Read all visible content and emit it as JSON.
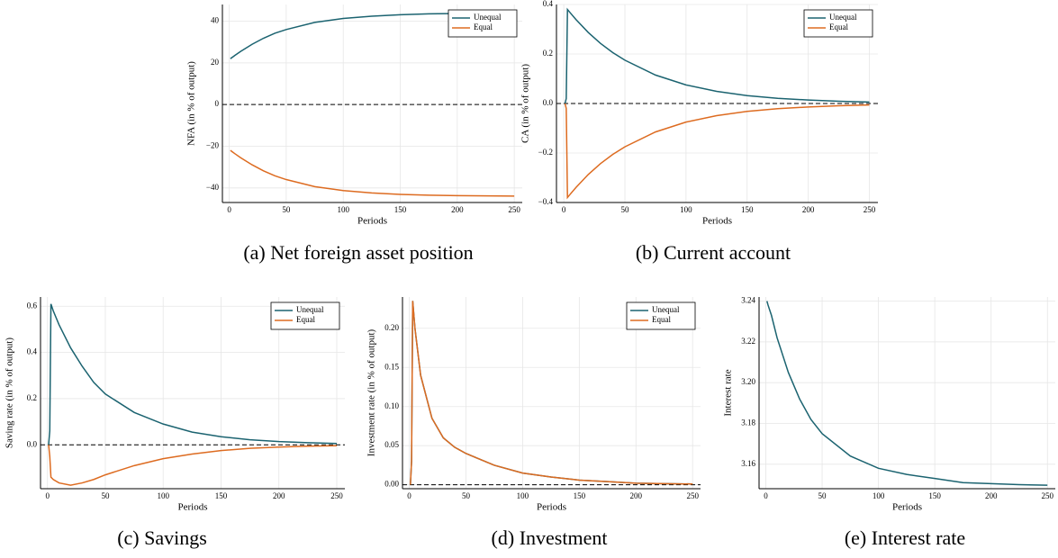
{
  "chart_data": [
    {
      "type": "line",
      "caption": "(a) Net foreign asset position",
      "xlabel": "Periods",
      "ylabel": "NFA (in % of output)",
      "x": [
        1,
        2,
        3,
        5,
        10,
        20,
        30,
        40,
        50,
        75,
        100,
        125,
        150,
        175,
        200,
        225,
        250
      ],
      "series": [
        {
          "name": "Unequal",
          "color": "#1b6370",
          "values": [
            22,
            22.4,
            22.8,
            23.6,
            25.5,
            28.9,
            31.8,
            34.2,
            36.0,
            39.4,
            41.3,
            42.4,
            43.1,
            43.5,
            43.7,
            43.8,
            43.9
          ]
        },
        {
          "name": "Equal",
          "color": "#dd6b20",
          "values": [
            -22,
            -22.4,
            -22.8,
            -23.6,
            -25.5,
            -28.9,
            -31.8,
            -34.2,
            -36.0,
            -39.4,
            -41.3,
            -42.4,
            -43.1,
            -43.5,
            -43.7,
            -43.8,
            -43.9
          ]
        }
      ],
      "xlim": [
        -6,
        257
      ],
      "xticks": [
        0,
        50,
        100,
        150,
        200,
        250
      ],
      "ylim": [
        -47,
        48
      ],
      "yticks": [
        {
          "value": -40,
          "label": "−40"
        },
        {
          "value": -20,
          "label": "−20"
        },
        0,
        20,
        40
      ],
      "hline": 0,
      "grid": true,
      "legend": "top-right"
    },
    {
      "type": "line",
      "caption": "(b) Current account",
      "xlabel": "Periods",
      "ylabel": "CA (in % of output)",
      "x": [
        1,
        2,
        3,
        5,
        10,
        20,
        30,
        40,
        50,
        75,
        100,
        125,
        150,
        175,
        200,
        225,
        250
      ],
      "series": [
        {
          "name": "Unequal",
          "color": "#1b6370",
          "values": [
            0,
            0.02,
            0.38,
            0.368,
            0.339,
            0.287,
            0.243,
            0.206,
            0.175,
            0.115,
            0.075,
            0.049,
            0.032,
            0.021,
            0.014,
            0.009,
            0.006
          ]
        },
        {
          "name": "Equal",
          "color": "#dd6b20",
          "values": [
            0,
            -0.02,
            -0.38,
            -0.368,
            -0.339,
            -0.287,
            -0.243,
            -0.206,
            -0.175,
            -0.115,
            -0.075,
            -0.049,
            -0.032,
            -0.021,
            -0.014,
            -0.009,
            -0.006
          ]
        }
      ],
      "xlim": [
        -6,
        257
      ],
      "xticks": [
        0,
        50,
        100,
        150,
        200,
        250
      ],
      "ylim": [
        -0.4,
        0.4
      ],
      "yticks": [
        {
          "value": -0.4,
          "label": "−0.4"
        },
        {
          "value": -0.2,
          "label": "−0.2"
        },
        {
          "value": 0,
          "label": "0.0"
        },
        0.2,
        0.4
      ],
      "hline": 0,
      "grid": true,
      "legend": "top-right"
    },
    {
      "type": "line",
      "caption": "(c) Savings",
      "xlabel": "Periods",
      "ylabel": "Saving rate (in % of output)",
      "x": [
        1,
        2,
        3,
        5,
        10,
        20,
        30,
        40,
        50,
        75,
        100,
        125,
        150,
        175,
        200,
        225,
        250
      ],
      "series": [
        {
          "name": "Unequal",
          "color": "#1b6370",
          "values": [
            0,
            0.06,
            0.61,
            0.58,
            0.52,
            0.42,
            0.34,
            0.27,
            0.22,
            0.14,
            0.09,
            0.055,
            0.035,
            0.022,
            0.014,
            0.009,
            0.006
          ]
        },
        {
          "name": "Equal",
          "color": "#dd6b20",
          "values": [
            0,
            -0.05,
            -0.14,
            -0.15,
            -0.165,
            -0.175,
            -0.165,
            -0.15,
            -0.13,
            -0.09,
            -0.06,
            -0.04,
            -0.025,
            -0.015,
            -0.01,
            -0.006,
            -0.004
          ]
        }
      ],
      "xlim": [
        -6,
        257
      ],
      "xticks": [
        0,
        50,
        100,
        150,
        200,
        250
      ],
      "ylim": [
        -0.19,
        0.64
      ],
      "yticks": [
        {
          "value": 0,
          "label": "0.0"
        },
        0.2,
        0.4,
        0.6
      ],
      "hline": 0,
      "grid": true,
      "legend": "top-right"
    },
    {
      "type": "line",
      "caption": "(d) Investment",
      "xlabel": "Periods",
      "ylabel": "Investment rate (in % of output)",
      "x": [
        1,
        2,
        3,
        5,
        10,
        20,
        30,
        40,
        50,
        75,
        100,
        125,
        150,
        175,
        200,
        225,
        250
      ],
      "series": [
        {
          "name": "Unequal",
          "color": "#1b6370",
          "values": [
            0,
            0.03,
            0.235,
            0.2,
            0.14,
            0.085,
            0.06,
            0.048,
            0.04,
            0.025,
            0.015,
            0.01,
            0.006,
            0.004,
            0.002,
            0.0015,
            0.001
          ]
        },
        {
          "name": "Equal",
          "color": "#dd6b20",
          "values": [
            0,
            0.03,
            0.235,
            0.2,
            0.14,
            0.085,
            0.06,
            0.048,
            0.04,
            0.025,
            0.015,
            0.01,
            0.006,
            0.004,
            0.002,
            0.0015,
            0.001
          ]
        }
      ],
      "xlim": [
        -6,
        257
      ],
      "xticks": [
        0,
        50,
        100,
        150,
        200,
        250
      ],
      "ylim": [
        -0.005,
        0.24
      ],
      "yticks": [
        {
          "value": 0,
          "label": "0.00"
        },
        0.05,
        {
          "value": 0.1,
          "label": "0.10"
        },
        0.15,
        {
          "value": 0.2,
          "label": "0.20"
        }
      ],
      "hline": 0,
      "grid": true,
      "legend": "top-right"
    },
    {
      "type": "line",
      "caption": "(e) Interest rate",
      "xlabel": "Periods",
      "ylabel": "Interest rate",
      "x": [
        1,
        2,
        5,
        10,
        20,
        30,
        40,
        50,
        75,
        100,
        125,
        150,
        175,
        200,
        225,
        250
      ],
      "values": [
        3.24,
        3.238,
        3.233,
        3.222,
        3.205,
        3.192,
        3.182,
        3.175,
        3.164,
        3.158,
        3.155,
        3.153,
        3.151,
        3.1505,
        3.15,
        3.1497
      ],
      "color": "#1b6370",
      "xlim": [
        -6,
        257
      ],
      "xticks": [
        0,
        50,
        100,
        150,
        200,
        250
      ],
      "ylim": [
        3.148,
        3.242
      ],
      "yticks": [
        3.16,
        3.18,
        {
          "value": 3.2,
          "label": "3.20"
        },
        3.22,
        3.24
      ],
      "grid": true
    }
  ]
}
